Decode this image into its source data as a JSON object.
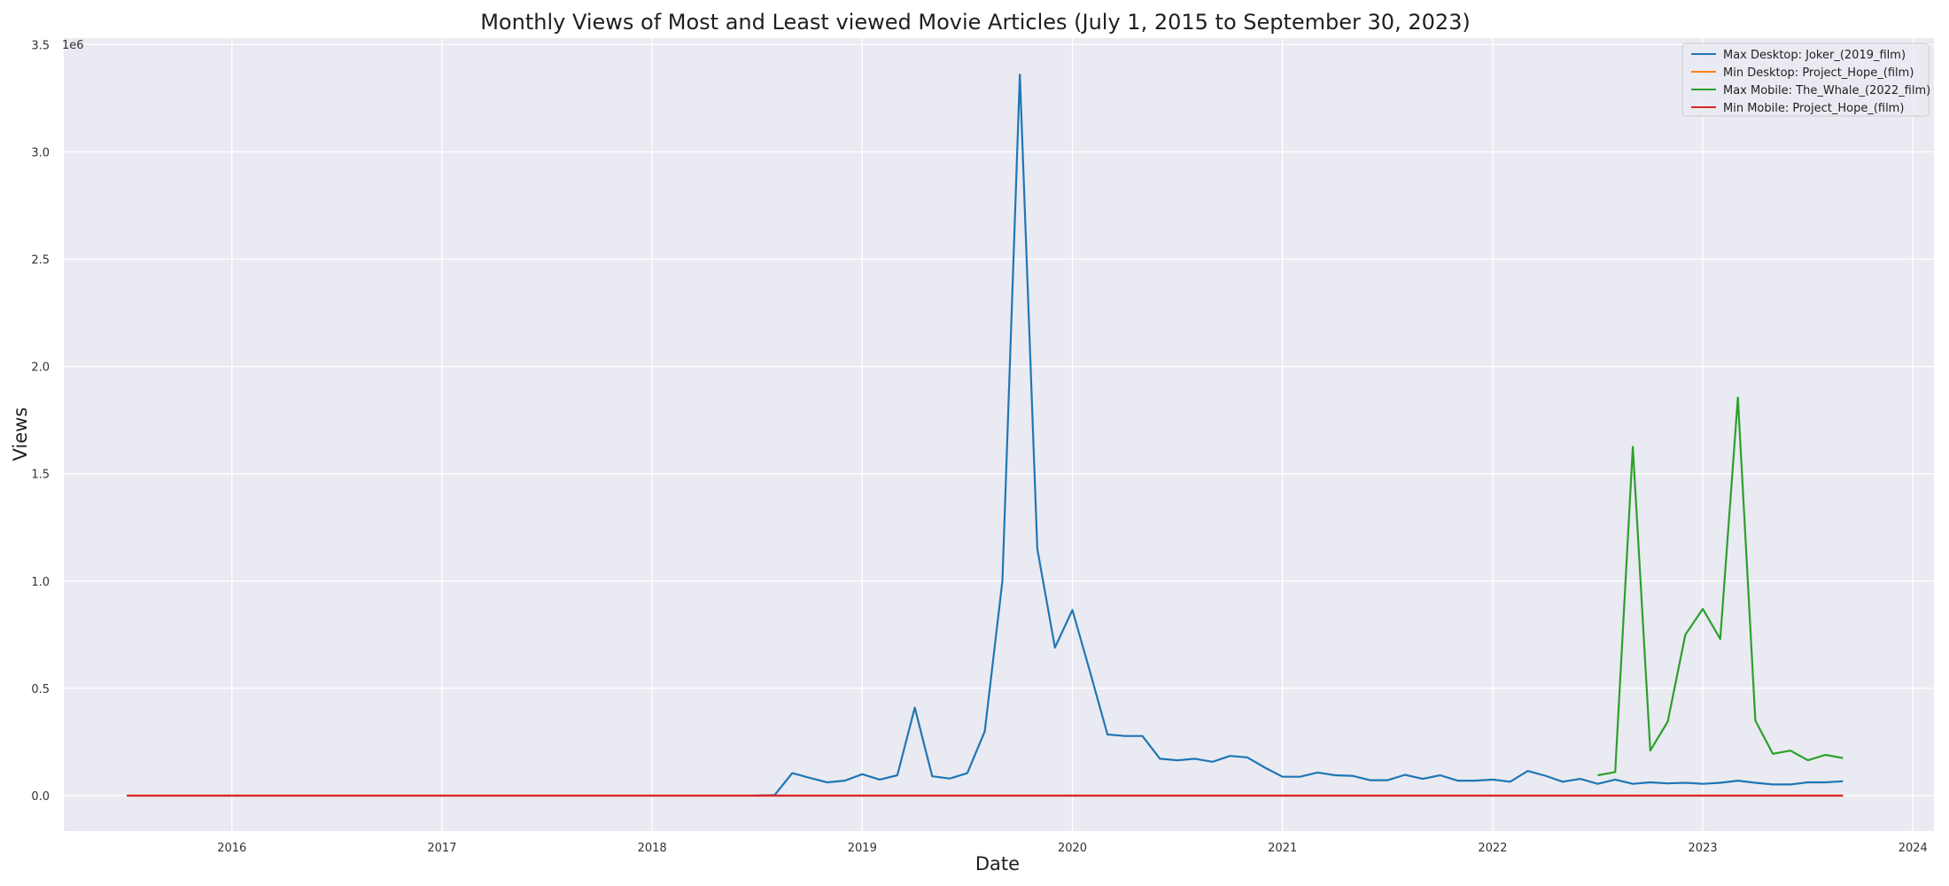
{
  "chart_data": {
    "type": "line",
    "title": "Monthly Views of Most and Least viewed Movie Articles (July 1, 2015 to September 30, 2023)",
    "xlabel": "Date",
    "ylabel": "Views",
    "y_offset_label": "1e6",
    "xlim": [
      2015.2,
      2024.1
    ],
    "ylim": [
      -0.165,
      3.53
    ],
    "x_ticks": [
      2016,
      2017,
      2018,
      2019,
      2020,
      2021,
      2022,
      2023,
      2024
    ],
    "x_tick_labels": [
      "2016",
      "2017",
      "2018",
      "2019",
      "2020",
      "2021",
      "2022",
      "2023",
      "2024"
    ],
    "y_ticks": [
      0.0,
      0.5,
      1.0,
      1.5,
      2.0,
      2.5,
      3.0,
      3.5
    ],
    "y_tick_labels": [
      "0.0",
      "0.5",
      "1.0",
      "1.5",
      "2.0",
      "2.5",
      "3.0",
      "3.5"
    ],
    "grid": true,
    "legend_position": "top-right",
    "colors": {
      "background": "#eaeaf2",
      "grid": "#ffffff"
    },
    "series": [
      {
        "name": "Max Desktop: Joker_(2019_film)",
        "color": "#1f77b4",
        "x": [
          2018.5,
          2018.583,
          2018.667,
          2018.75,
          2018.833,
          2018.917,
          2019.0,
          2019.083,
          2019.167,
          2019.25,
          2019.333,
          2019.417,
          2019.5,
          2019.583,
          2019.667,
          2019.75,
          2019.833,
          2019.917,
          2020.0,
          2020.083,
          2020.167,
          2020.25,
          2020.333,
          2020.417,
          2020.5,
          2020.583,
          2020.667,
          2020.75,
          2020.833,
          2020.917,
          2021.0,
          2021.083,
          2021.167,
          2021.25,
          2021.333,
          2021.417,
          2021.5,
          2021.583,
          2021.667,
          2021.75,
          2021.833,
          2021.917,
          2022.0,
          2022.083,
          2022.167,
          2022.25,
          2022.333,
          2022.417,
          2022.5,
          2022.583,
          2022.667,
          2022.75,
          2022.833,
          2022.917,
          2023.0,
          2023.083,
          2023.167,
          2023.25,
          2023.333,
          2023.417,
          2023.5,
          2023.583,
          2023.667
        ],
        "values": [
          0.0,
          0.003,
          0.105,
          0.083,
          0.062,
          0.07,
          0.1,
          0.075,
          0.095,
          0.41,
          0.09,
          0.08,
          0.105,
          0.3,
          1.0,
          3.36,
          1.15,
          0.69,
          0.865,
          0.58,
          0.285,
          0.278,
          0.278,
          0.172,
          0.165,
          0.172,
          0.158,
          0.185,
          0.178,
          0.13,
          0.088,
          0.088,
          0.108,
          0.095,
          0.092,
          0.072,
          0.072,
          0.097,
          0.078,
          0.095,
          0.07,
          0.07,
          0.075,
          0.065,
          0.115,
          0.093,
          0.065,
          0.078,
          0.055,
          0.075,
          0.055,
          0.062,
          0.057,
          0.06,
          0.055,
          0.06,
          0.07,
          0.06,
          0.052,
          0.052,
          0.062,
          0.062,
          0.067
        ]
      },
      {
        "name": "Min Desktop: Project_Hope_(film)",
        "color": "#ff7f0e",
        "x": [
          2015.5,
          2023.667
        ],
        "values": [
          0.0,
          0.0
        ]
      },
      {
        "name": "Max Mobile: The_Whale_(2022_film)",
        "color": "#2ca02c",
        "x": [
          2022.5,
          2022.583,
          2022.667,
          2022.75,
          2022.833,
          2022.917,
          2023.0,
          2023.083,
          2023.167,
          2023.25,
          2023.333,
          2023.417,
          2023.5,
          2023.583,
          2023.667
        ],
        "values": [
          0.095,
          0.11,
          1.625,
          0.21,
          0.345,
          0.75,
          0.87,
          0.73,
          1.855,
          0.35,
          0.195,
          0.21,
          0.165,
          0.19,
          0.175
        ]
      },
      {
        "name": "Min Mobile: Project_Hope_(film)",
        "color": "#d62728",
        "x": [
          2015.5,
          2023.667
        ],
        "values": [
          0.0,
          0.0
        ]
      }
    ]
  }
}
